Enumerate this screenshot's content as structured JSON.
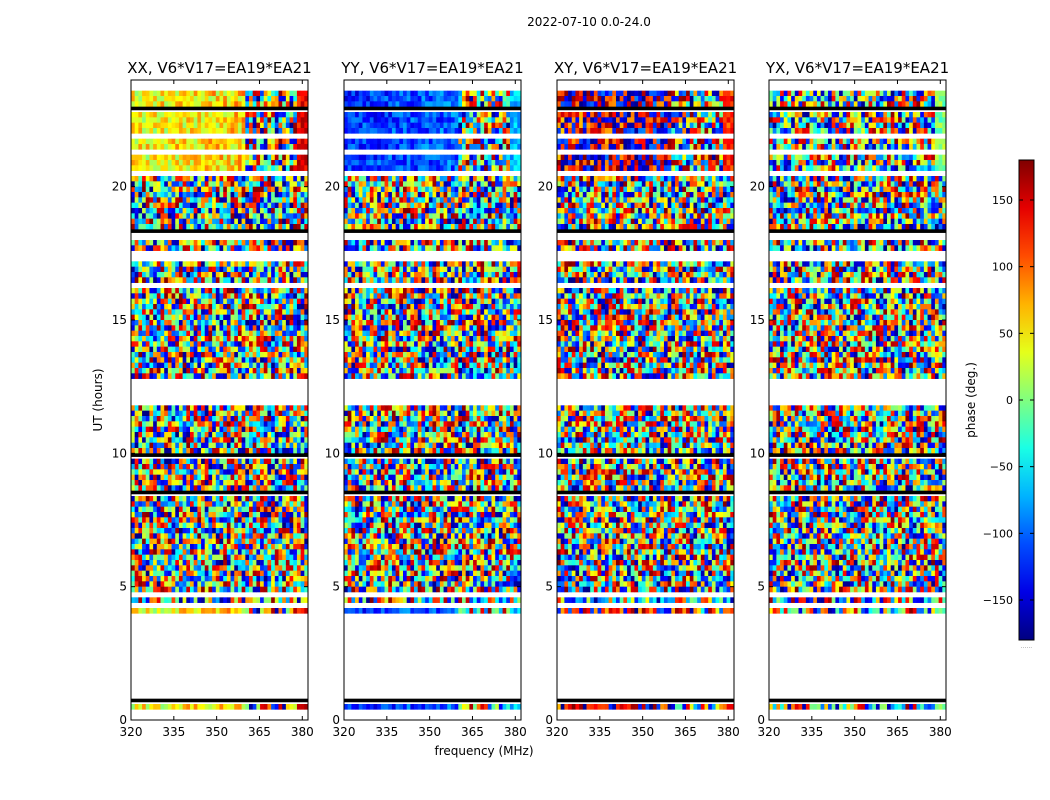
{
  "figure_title": "2022-07-10 0.0-24.0",
  "chart_data": {
    "type": "heatmap",
    "title": "2022-07-10 0.0-24.0",
    "xlabel": "frequency (MHz)",
    "ylabel": "UT (hours)",
    "xlim": [
      320,
      382
    ],
    "ylim": [
      0,
      24
    ],
    "xticks": [
      320,
      335,
      350,
      365,
      380
    ],
    "yticks": [
      0,
      5,
      10,
      15,
      20
    ],
    "panels": [
      {
        "title": "XX, V6*V17=EA19*EA21",
        "polarization": "XX",
        "region_a_phase": 40,
        "region_b_phase": 140,
        "region_a_noise": 0.25
      },
      {
        "title": "YY, V6*V17=EA19*EA21",
        "polarization": "YY",
        "region_a_phase": -120,
        "region_b_phase": -70,
        "region_a_noise": 0.2
      },
      {
        "title": "XY, V6*V17=EA19*EA21",
        "polarization": "XY",
        "region_a_phase": 160,
        "region_b_phase": 120,
        "region_a_noise": 0.55
      },
      {
        "title": "YX, V6*V17=EA19*EA21",
        "polarization": "YX",
        "region_a_phase": -20,
        "region_b_phase": 0,
        "region_a_noise": 0.95
      }
    ],
    "coherent_band_edge_mhz": 360,
    "flagged_ut_ranges": [
      [
        0.0,
        0.45
      ],
      [
        0.75,
        4.0
      ],
      [
        4.25,
        4.5
      ],
      [
        11.9,
        12.8
      ],
      [
        17.2,
        17.5
      ],
      [
        20.4,
        20.6
      ]
    ],
    "colorbar": {
      "label": "phase (deg.)",
      "range": [
        -180,
        180
      ],
      "ticks": [
        -150,
        -100,
        -50,
        0,
        50,
        100,
        150
      ],
      "tick_labels": [
        "−150",
        "−100",
        "−50",
        "0",
        "50",
        "100",
        "150"
      ],
      "colormap": "jet",
      "extra_label": "......"
    }
  }
}
